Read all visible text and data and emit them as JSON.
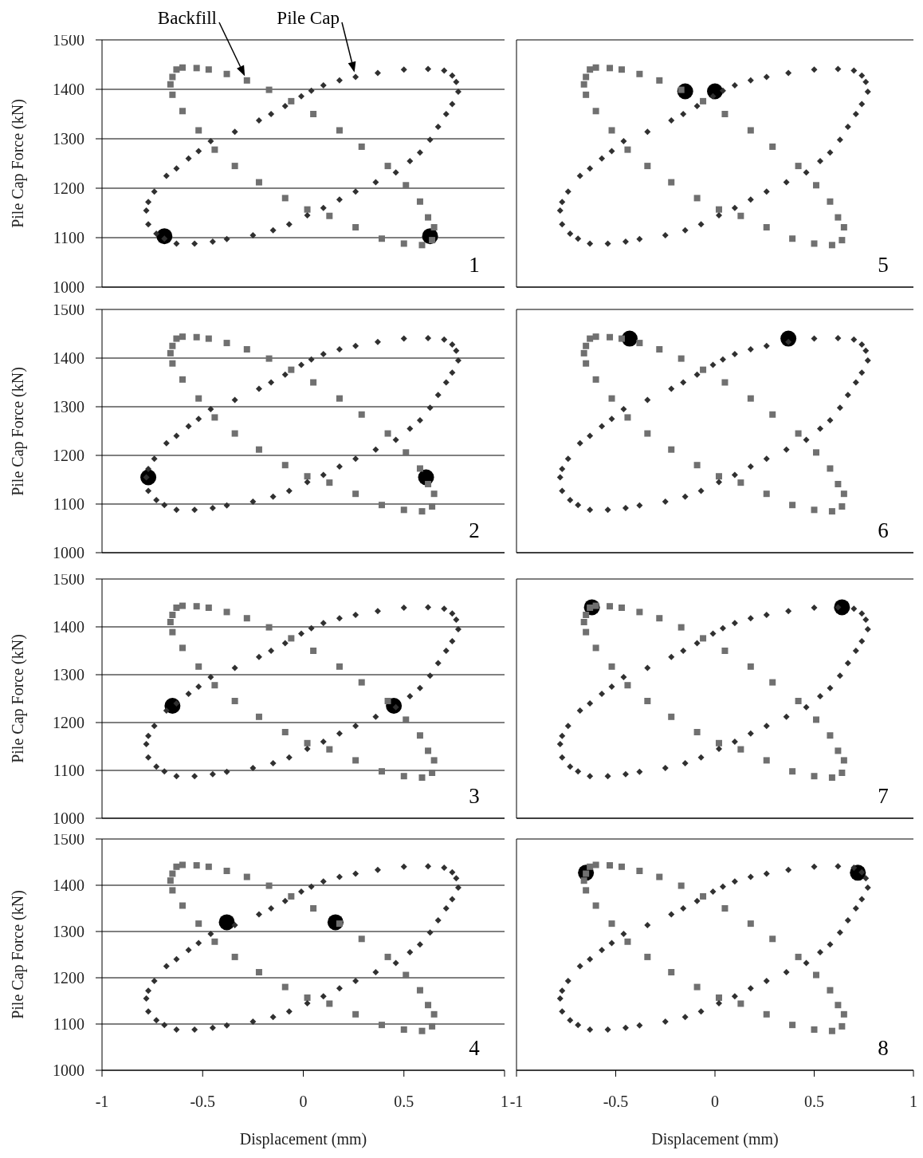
{
  "chart_data": [
    {
      "type": "scatter",
      "ylabel": "Pile Cap Force (kN)",
      "annotations": [
        "1"
      ],
      "xlim": [
        -1,
        1
      ],
      "xticks": [
        -1,
        -0.5,
        0,
        0.5,
        1
      ],
      "ylim": [
        1000,
        1500
      ],
      "yticks": [
        1000,
        1100,
        1200,
        1300,
        1400,
        1500
      ],
      "grid": "y",
      "tick_labels": "y",
      "series": [
        {
          "marker": "circle",
          "color": "#000000",
          "x": [
            -0.69,
            0.63
          ],
          "values": [
            1103,
            1103
          ]
        },
        {
          "name": "Backfill",
          "marker": "square",
          "color": "#707070",
          "x": [
            -0.65,
            -0.63,
            -0.6,
            -0.53,
            -0.47,
            -0.38,
            -0.28,
            -0.17,
            -0.06,
            0.05,
            0.18,
            0.29,
            0.42,
            0.51,
            0.58,
            0.62,
            0.65,
            0.64,
            0.59,
            0.5,
            0.39,
            0.26,
            0.13,
            0.02,
            -0.09,
            -0.22,
            -0.34,
            -0.44,
            -0.52,
            -0.6,
            -0.65,
            -0.66
          ],
          "values": [
            1425,
            1440,
            1444,
            1443,
            1440,
            1431,
            1418,
            1399,
            1376,
            1350,
            1317,
            1284,
            1245,
            1206,
            1173,
            1141,
            1121,
            1095,
            1085,
            1088,
            1098,
            1121,
            1144,
            1157,
            1180,
            1212,
            1245,
            1278,
            1317,
            1356,
            1389,
            1410
          ]
        },
        {
          "name": "Pile Cap",
          "marker": "diamond",
          "color": "#303030",
          "x": [
            -0.78,
            -0.77,
            -0.73,
            -0.69,
            -0.63,
            -0.54,
            -0.45,
            -0.38,
            -0.25,
            -0.15,
            -0.07,
            0.02,
            0.1,
            0.18,
            0.26,
            0.36,
            0.46,
            0.53,
            0.58,
            0.63,
            0.67,
            0.71,
            0.74,
            0.77,
            0.76,
            0.74,
            0.7,
            0.62,
            0.5,
            0.37,
            0.26,
            0.18,
            0.1,
            0.04,
            -0.01,
            -0.09,
            -0.16,
            -0.22,
            -0.34,
            -0.46,
            -0.52,
            -0.57,
            -0.63,
            -0.68,
            -0.74,
            -0.77
          ],
          "values": [
            1155,
            1127,
            1108,
            1098,
            1088,
            1088,
            1092,
            1097,
            1105,
            1115,
            1127,
            1145,
            1160,
            1177,
            1193,
            1212,
            1232,
            1255,
            1272,
            1298,
            1324,
            1350,
            1370,
            1395,
            1415,
            1428,
            1438,
            1441,
            1440,
            1433,
            1425,
            1418,
            1408,
            1397,
            1386,
            1366,
            1350,
            1337,
            1314,
            1295,
            1275,
            1260,
            1240,
            1225,
            1193,
            1172
          ]
        }
      ]
    },
    {
      "type": "scatter",
      "ylabel": "Pile Cap Force (kN)",
      "annotations": [
        "2"
      ],
      "xlim": [
        -1,
        1
      ],
      "xticks": [
        -1,
        -0.5,
        0,
        0.5,
        1
      ],
      "ylim": [
        1000,
        1500
      ],
      "yticks": [
        1000,
        1100,
        1200,
        1300,
        1400,
        1500
      ],
      "grid": "y",
      "tick_labels": "y",
      "series": [
        {
          "marker": "circle",
          "color": "#000000",
          "x": [
            -0.77,
            0.61
          ],
          "values": [
            1155,
            1155
          ]
        },
        {
          "marker": "square",
          "color": "#707070",
          "x": [
            -0.65,
            -0.63,
            -0.6,
            -0.53,
            -0.47,
            -0.38,
            -0.28,
            -0.17,
            -0.06,
            0.05,
            0.18,
            0.29,
            0.42,
            0.51,
            0.58,
            0.62,
            0.65,
            0.64,
            0.59,
            0.5,
            0.39,
            0.26,
            0.13,
            0.02,
            -0.09,
            -0.22,
            -0.34,
            -0.44,
            -0.52,
            -0.6,
            -0.65,
            -0.66
          ],
          "values": [
            1425,
            1440,
            1444,
            1443,
            1440,
            1431,
            1418,
            1399,
            1376,
            1350,
            1317,
            1284,
            1245,
            1206,
            1173,
            1141,
            1121,
            1095,
            1085,
            1088,
            1098,
            1121,
            1144,
            1157,
            1180,
            1212,
            1245,
            1278,
            1317,
            1356,
            1389,
            1410
          ]
        },
        {
          "marker": "diamond",
          "color": "#303030",
          "x": [
            -0.78,
            -0.77,
            -0.73,
            -0.69,
            -0.63,
            -0.54,
            -0.45,
            -0.38,
            -0.25,
            -0.15,
            -0.07,
            0.02,
            0.1,
            0.18,
            0.26,
            0.36,
            0.46,
            0.53,
            0.58,
            0.63,
            0.67,
            0.71,
            0.74,
            0.77,
            0.76,
            0.74,
            0.7,
            0.62,
            0.5,
            0.37,
            0.26,
            0.18,
            0.1,
            0.04,
            -0.01,
            -0.09,
            -0.16,
            -0.22,
            -0.34,
            -0.46,
            -0.52,
            -0.57,
            -0.63,
            -0.68,
            -0.74,
            -0.77
          ],
          "values": [
            1155,
            1127,
            1108,
            1098,
            1088,
            1088,
            1092,
            1097,
            1105,
            1115,
            1127,
            1145,
            1160,
            1177,
            1193,
            1212,
            1232,
            1255,
            1272,
            1298,
            1324,
            1350,
            1370,
            1395,
            1415,
            1428,
            1438,
            1441,
            1440,
            1433,
            1425,
            1418,
            1408,
            1397,
            1386,
            1366,
            1350,
            1337,
            1314,
            1295,
            1275,
            1260,
            1240,
            1225,
            1193,
            1172
          ]
        }
      ]
    },
    {
      "type": "scatter",
      "ylabel": "Pile Cap Force (kN)",
      "annotations": [
        "3"
      ],
      "xlim": [
        -1,
        1
      ],
      "xticks": [
        -1,
        -0.5,
        0,
        0.5,
        1
      ],
      "ylim": [
        1000,
        1500
      ],
      "yticks": [
        1000,
        1100,
        1200,
        1300,
        1400,
        1500
      ],
      "grid": "y",
      "tick_labels": "y",
      "series": [
        {
          "marker": "circle",
          "color": "#000000",
          "x": [
            -0.65,
            0.45
          ],
          "values": [
            1235,
            1235
          ]
        },
        {
          "marker": "square",
          "color": "#707070",
          "x": [
            -0.65,
            -0.63,
            -0.6,
            -0.53,
            -0.47,
            -0.38,
            -0.28,
            -0.17,
            -0.06,
            0.05,
            0.18,
            0.29,
            0.42,
            0.51,
            0.58,
            0.62,
            0.65,
            0.64,
            0.59,
            0.5,
            0.39,
            0.26,
            0.13,
            0.02,
            -0.09,
            -0.22,
            -0.34,
            -0.44,
            -0.52,
            -0.6,
            -0.65,
            -0.66
          ],
          "values": [
            1425,
            1440,
            1444,
            1443,
            1440,
            1431,
            1418,
            1399,
            1376,
            1350,
            1317,
            1284,
            1245,
            1206,
            1173,
            1141,
            1121,
            1095,
            1085,
            1088,
            1098,
            1121,
            1144,
            1157,
            1180,
            1212,
            1245,
            1278,
            1317,
            1356,
            1389,
            1410
          ]
        },
        {
          "marker": "diamond",
          "color": "#303030",
          "x": [
            -0.78,
            -0.77,
            -0.73,
            -0.69,
            -0.63,
            -0.54,
            -0.45,
            -0.38,
            -0.25,
            -0.15,
            -0.07,
            0.02,
            0.1,
            0.18,
            0.26,
            0.36,
            0.46,
            0.53,
            0.58,
            0.63,
            0.67,
            0.71,
            0.74,
            0.77,
            0.76,
            0.74,
            0.7,
            0.62,
            0.5,
            0.37,
            0.26,
            0.18,
            0.1,
            0.04,
            -0.01,
            -0.09,
            -0.16,
            -0.22,
            -0.34,
            -0.46,
            -0.52,
            -0.57,
            -0.63,
            -0.68,
            -0.74,
            -0.77
          ],
          "values": [
            1155,
            1127,
            1108,
            1098,
            1088,
            1088,
            1092,
            1097,
            1105,
            1115,
            1127,
            1145,
            1160,
            1177,
            1193,
            1212,
            1232,
            1255,
            1272,
            1298,
            1324,
            1350,
            1370,
            1395,
            1415,
            1428,
            1438,
            1441,
            1440,
            1433,
            1425,
            1418,
            1408,
            1397,
            1386,
            1366,
            1350,
            1337,
            1314,
            1295,
            1275,
            1260,
            1240,
            1225,
            1193,
            1172
          ]
        }
      ]
    },
    {
      "type": "scatter",
      "xlabel": "Displacement (mm)",
      "ylabel": "Pile Cap Force (kN)",
      "annotations": [
        "4"
      ],
      "xlim": [
        -1,
        1
      ],
      "xticks": [
        -1,
        -0.5,
        0,
        0.5,
        1
      ],
      "ylim": [
        1000,
        1500
      ],
      "yticks": [
        1000,
        1100,
        1200,
        1300,
        1400,
        1500
      ],
      "grid": "y",
      "series": [
        {
          "marker": "circle",
          "color": "#000000",
          "x": [
            -0.38,
            0.16
          ],
          "values": [
            1320,
            1320
          ]
        },
        {
          "marker": "square",
          "color": "#707070",
          "x": [
            -0.65,
            -0.63,
            -0.6,
            -0.53,
            -0.47,
            -0.38,
            -0.28,
            -0.17,
            -0.06,
            0.05,
            0.18,
            0.29,
            0.42,
            0.51,
            0.58,
            0.62,
            0.65,
            0.64,
            0.59,
            0.5,
            0.39,
            0.26,
            0.13,
            0.02,
            -0.09,
            -0.22,
            -0.34,
            -0.44,
            -0.52,
            -0.6,
            -0.65,
            -0.66
          ],
          "values": [
            1425,
            1440,
            1444,
            1443,
            1440,
            1431,
            1418,
            1399,
            1376,
            1350,
            1317,
            1284,
            1245,
            1206,
            1173,
            1141,
            1121,
            1095,
            1085,
            1088,
            1098,
            1121,
            1144,
            1157,
            1180,
            1212,
            1245,
            1278,
            1317,
            1356,
            1389,
            1410
          ]
        },
        {
          "marker": "diamond",
          "color": "#303030",
          "x": [
            -0.78,
            -0.77,
            -0.73,
            -0.69,
            -0.63,
            -0.54,
            -0.45,
            -0.38,
            -0.25,
            -0.15,
            -0.07,
            0.02,
            0.1,
            0.18,
            0.26,
            0.36,
            0.46,
            0.53,
            0.58,
            0.63,
            0.67,
            0.71,
            0.74,
            0.77,
            0.76,
            0.74,
            0.7,
            0.62,
            0.5,
            0.37,
            0.26,
            0.18,
            0.1,
            0.04,
            -0.01,
            -0.09,
            -0.16,
            -0.22,
            -0.34,
            -0.46,
            -0.52,
            -0.57,
            -0.63,
            -0.68,
            -0.74,
            -0.77
          ],
          "values": [
            1155,
            1127,
            1108,
            1098,
            1088,
            1088,
            1092,
            1097,
            1105,
            1115,
            1127,
            1145,
            1160,
            1177,
            1193,
            1212,
            1232,
            1255,
            1272,
            1298,
            1324,
            1350,
            1370,
            1395,
            1415,
            1428,
            1438,
            1441,
            1440,
            1433,
            1425,
            1418,
            1408,
            1397,
            1386,
            1366,
            1350,
            1337,
            1314,
            1295,
            1275,
            1260,
            1240,
            1225,
            1193,
            1172
          ]
        }
      ]
    },
    {
      "type": "scatter",
      "annotations": [
        "5"
      ],
      "xlim": [
        -1,
        1
      ],
      "xticks": [
        -1,
        -0.5,
        0,
        0.5,
        1
      ],
      "ylim": [
        1000,
        1500
      ],
      "yticks": [
        1000,
        1100,
        1200,
        1300,
        1400,
        1500
      ],
      "grid": "y",
      "tick_labels": false,
      "series": [
        {
          "marker": "circle",
          "color": "#000000",
          "x": [
            -0.15,
            0
          ],
          "values": [
            1396,
            1396
          ]
        },
        {
          "marker": "square",
          "color": "#707070",
          "x": [
            -0.65,
            -0.63,
            -0.6,
            -0.53,
            -0.47,
            -0.38,
            -0.28,
            -0.17,
            -0.06,
            0.05,
            0.18,
            0.29,
            0.42,
            0.51,
            0.58,
            0.62,
            0.65,
            0.64,
            0.59,
            0.5,
            0.39,
            0.26,
            0.13,
            0.02,
            -0.09,
            -0.22,
            -0.34,
            -0.44,
            -0.52,
            -0.6,
            -0.65,
            -0.66
          ],
          "values": [
            1425,
            1440,
            1444,
            1443,
            1440,
            1431,
            1418,
            1399,
            1376,
            1350,
            1317,
            1284,
            1245,
            1206,
            1173,
            1141,
            1121,
            1095,
            1085,
            1088,
            1098,
            1121,
            1144,
            1157,
            1180,
            1212,
            1245,
            1278,
            1317,
            1356,
            1389,
            1410
          ]
        },
        {
          "marker": "diamond",
          "color": "#303030",
          "x": [
            -0.78,
            -0.77,
            -0.73,
            -0.69,
            -0.63,
            -0.54,
            -0.45,
            -0.38,
            -0.25,
            -0.15,
            -0.07,
            0.02,
            0.1,
            0.18,
            0.26,
            0.36,
            0.46,
            0.53,
            0.58,
            0.63,
            0.67,
            0.71,
            0.74,
            0.77,
            0.76,
            0.74,
            0.7,
            0.62,
            0.5,
            0.37,
            0.26,
            0.18,
            0.1,
            0.04,
            -0.01,
            -0.09,
            -0.16,
            -0.22,
            -0.34,
            -0.46,
            -0.52,
            -0.57,
            -0.63,
            -0.68,
            -0.74,
            -0.77
          ],
          "values": [
            1155,
            1127,
            1108,
            1098,
            1088,
            1088,
            1092,
            1097,
            1105,
            1115,
            1127,
            1145,
            1160,
            1177,
            1193,
            1212,
            1232,
            1255,
            1272,
            1298,
            1324,
            1350,
            1370,
            1395,
            1415,
            1428,
            1438,
            1441,
            1440,
            1433,
            1425,
            1418,
            1408,
            1397,
            1386,
            1366,
            1350,
            1337,
            1314,
            1295,
            1275,
            1260,
            1240,
            1225,
            1193,
            1172
          ]
        }
      ]
    },
    {
      "type": "scatter",
      "annotations": [
        "6"
      ],
      "xlim": [
        -1,
        1
      ],
      "xticks": [
        -1,
        -0.5,
        0,
        0.5,
        1
      ],
      "ylim": [
        1000,
        1500
      ],
      "yticks": [
        1000,
        1100,
        1200,
        1300,
        1400,
        1500
      ],
      "grid": "y",
      "tick_labels": false,
      "series": [
        {
          "marker": "circle",
          "color": "#000000",
          "x": [
            -0.43,
            0.37
          ],
          "values": [
            1440,
            1440
          ]
        },
        {
          "marker": "square",
          "color": "#707070",
          "x": [
            -0.65,
            -0.63,
            -0.6,
            -0.53,
            -0.47,
            -0.38,
            -0.28,
            -0.17,
            -0.06,
            0.05,
            0.18,
            0.29,
            0.42,
            0.51,
            0.58,
            0.62,
            0.65,
            0.64,
            0.59,
            0.5,
            0.39,
            0.26,
            0.13,
            0.02,
            -0.09,
            -0.22,
            -0.34,
            -0.44,
            -0.52,
            -0.6,
            -0.65,
            -0.66
          ],
          "values": [
            1425,
            1440,
            1444,
            1443,
            1440,
            1431,
            1418,
            1399,
            1376,
            1350,
            1317,
            1284,
            1245,
            1206,
            1173,
            1141,
            1121,
            1095,
            1085,
            1088,
            1098,
            1121,
            1144,
            1157,
            1180,
            1212,
            1245,
            1278,
            1317,
            1356,
            1389,
            1410
          ]
        },
        {
          "marker": "diamond",
          "color": "#303030",
          "x": [
            -0.78,
            -0.77,
            -0.73,
            -0.69,
            -0.63,
            -0.54,
            -0.45,
            -0.38,
            -0.25,
            -0.15,
            -0.07,
            0.02,
            0.1,
            0.18,
            0.26,
            0.36,
            0.46,
            0.53,
            0.58,
            0.63,
            0.67,
            0.71,
            0.74,
            0.77,
            0.76,
            0.74,
            0.7,
            0.62,
            0.5,
            0.37,
            0.26,
            0.18,
            0.1,
            0.04,
            -0.01,
            -0.09,
            -0.16,
            -0.22,
            -0.34,
            -0.46,
            -0.52,
            -0.57,
            -0.63,
            -0.68,
            -0.74,
            -0.77
          ],
          "values": [
            1155,
            1127,
            1108,
            1098,
            1088,
            1088,
            1092,
            1097,
            1105,
            1115,
            1127,
            1145,
            1160,
            1177,
            1193,
            1212,
            1232,
            1255,
            1272,
            1298,
            1324,
            1350,
            1370,
            1395,
            1415,
            1428,
            1438,
            1441,
            1440,
            1433,
            1425,
            1418,
            1408,
            1397,
            1386,
            1366,
            1350,
            1337,
            1314,
            1295,
            1275,
            1260,
            1240,
            1225,
            1193,
            1172
          ]
        }
      ]
    },
    {
      "type": "scatter",
      "annotations": [
        "7"
      ],
      "xlim": [
        -1,
        1
      ],
      "xticks": [
        -1,
        -0.5,
        0,
        0.5,
        1
      ],
      "ylim": [
        1000,
        1500
      ],
      "yticks": [
        1000,
        1100,
        1200,
        1300,
        1400,
        1500
      ],
      "grid": "y",
      "tick_labels": false,
      "series": [
        {
          "marker": "circle",
          "color": "#000000",
          "x": [
            -0.62,
            0.64
          ],
          "values": [
            1441,
            1441
          ]
        },
        {
          "marker": "square",
          "color": "#707070",
          "x": [
            -0.65,
            -0.63,
            -0.6,
            -0.53,
            -0.47,
            -0.38,
            -0.28,
            -0.17,
            -0.06,
            0.05,
            0.18,
            0.29,
            0.42,
            0.51,
            0.58,
            0.62,
            0.65,
            0.64,
            0.59,
            0.5,
            0.39,
            0.26,
            0.13,
            0.02,
            -0.09,
            -0.22,
            -0.34,
            -0.44,
            -0.52,
            -0.6,
            -0.65,
            -0.66
          ],
          "values": [
            1425,
            1440,
            1444,
            1443,
            1440,
            1431,
            1418,
            1399,
            1376,
            1350,
            1317,
            1284,
            1245,
            1206,
            1173,
            1141,
            1121,
            1095,
            1085,
            1088,
            1098,
            1121,
            1144,
            1157,
            1180,
            1212,
            1245,
            1278,
            1317,
            1356,
            1389,
            1410
          ]
        },
        {
          "marker": "diamond",
          "color": "#303030",
          "x": [
            -0.78,
            -0.77,
            -0.73,
            -0.69,
            -0.63,
            -0.54,
            -0.45,
            -0.38,
            -0.25,
            -0.15,
            -0.07,
            0.02,
            0.1,
            0.18,
            0.26,
            0.36,
            0.46,
            0.53,
            0.58,
            0.63,
            0.67,
            0.71,
            0.74,
            0.77,
            0.76,
            0.74,
            0.7,
            0.62,
            0.5,
            0.37,
            0.26,
            0.18,
            0.1,
            0.04,
            -0.01,
            -0.09,
            -0.16,
            -0.22,
            -0.34,
            -0.46,
            -0.52,
            -0.57,
            -0.63,
            -0.68,
            -0.74,
            -0.77
          ],
          "values": [
            1155,
            1127,
            1108,
            1098,
            1088,
            1088,
            1092,
            1097,
            1105,
            1115,
            1127,
            1145,
            1160,
            1177,
            1193,
            1212,
            1232,
            1255,
            1272,
            1298,
            1324,
            1350,
            1370,
            1395,
            1415,
            1428,
            1438,
            1441,
            1440,
            1433,
            1425,
            1418,
            1408,
            1397,
            1386,
            1366,
            1350,
            1337,
            1314,
            1295,
            1275,
            1260,
            1240,
            1225,
            1193,
            1172
          ]
        }
      ]
    },
    {
      "type": "scatter",
      "xlabel": "Displacement (mm)",
      "annotations": [
        "8"
      ],
      "xlim": [
        -1,
        1
      ],
      "xticks": [
        -1,
        -0.5,
        0,
        0.5,
        1
      ],
      "ylim": [
        1000,
        1500
      ],
      "yticks": [
        1000,
        1100,
        1200,
        1300,
        1400,
        1500
      ],
      "grid": "y",
      "tick_labels": "x",
      "series": [
        {
          "marker": "circle",
          "color": "#000000",
          "x": [
            -0.65,
            0.72
          ],
          "values": [
            1427,
            1427
          ]
        },
        {
          "marker": "square",
          "color": "#707070",
          "x": [
            -0.65,
            -0.63,
            -0.6,
            -0.53,
            -0.47,
            -0.38,
            -0.28,
            -0.17,
            -0.06,
            0.05,
            0.18,
            0.29,
            0.42,
            0.51,
            0.58,
            0.62,
            0.65,
            0.64,
            0.59,
            0.5,
            0.39,
            0.26,
            0.13,
            0.02,
            -0.09,
            -0.22,
            -0.34,
            -0.44,
            -0.52,
            -0.6,
            -0.65,
            -0.66
          ],
          "values": [
            1425,
            1440,
            1444,
            1443,
            1440,
            1431,
            1418,
            1399,
            1376,
            1350,
            1317,
            1284,
            1245,
            1206,
            1173,
            1141,
            1121,
            1095,
            1085,
            1088,
            1098,
            1121,
            1144,
            1157,
            1180,
            1212,
            1245,
            1278,
            1317,
            1356,
            1389,
            1410
          ]
        },
        {
          "marker": "diamond",
          "color": "#303030",
          "x": [
            -0.78,
            -0.77,
            -0.73,
            -0.69,
            -0.63,
            -0.54,
            -0.45,
            -0.38,
            -0.25,
            -0.15,
            -0.07,
            0.02,
            0.1,
            0.18,
            0.26,
            0.36,
            0.46,
            0.53,
            0.58,
            0.63,
            0.67,
            0.71,
            0.74,
            0.77,
            0.76,
            0.74,
            0.7,
            0.62,
            0.5,
            0.37,
            0.26,
            0.18,
            0.1,
            0.04,
            -0.01,
            -0.09,
            -0.16,
            -0.22,
            -0.34,
            -0.46,
            -0.52,
            -0.57,
            -0.63,
            -0.68,
            -0.74,
            -0.77
          ],
          "values": [
            1155,
            1127,
            1108,
            1098,
            1088,
            1088,
            1092,
            1097,
            1105,
            1115,
            1127,
            1145,
            1160,
            1177,
            1193,
            1212,
            1232,
            1255,
            1272,
            1298,
            1324,
            1350,
            1370,
            1395,
            1415,
            1428,
            1438,
            1441,
            1440,
            1433,
            1425,
            1418,
            1408,
            1397,
            1386,
            1366,
            1350,
            1337,
            1314,
            1295,
            1275,
            1260,
            1240,
            1225,
            1193,
            1172
          ]
        }
      ]
    }
  ]
}
